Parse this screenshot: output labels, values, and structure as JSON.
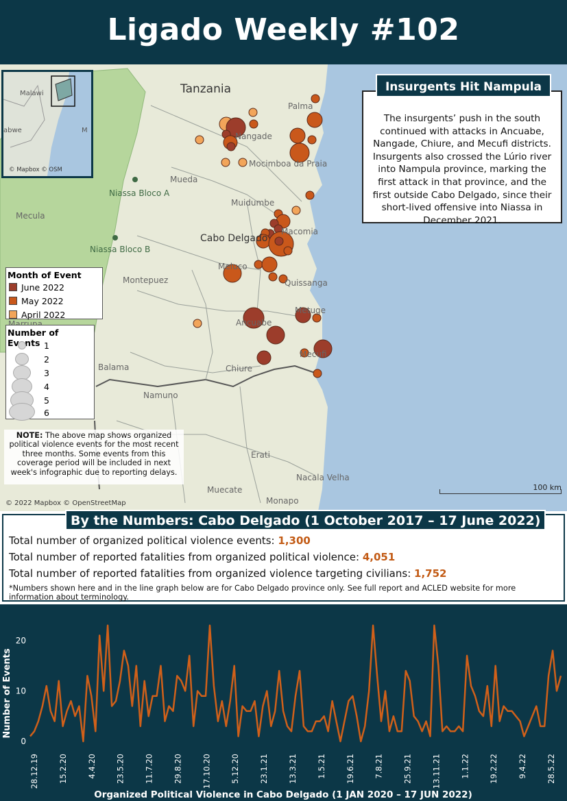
{
  "header": {
    "title": "Ligado Weekly #102"
  },
  "map": {
    "places": [
      {
        "name": "Tanzania",
        "cls": "big"
      },
      {
        "name": "Palma",
        "cls": ""
      },
      {
        "name": "Nangade",
        "cls": ""
      },
      {
        "name": "Mocimboa da Praia",
        "cls": ""
      },
      {
        "name": "Mueda",
        "cls": ""
      },
      {
        "name": "Niassa Bloco A",
        "cls": "green"
      },
      {
        "name": "Mecula",
        "cls": ""
      },
      {
        "name": "Muidumbe",
        "cls": ""
      },
      {
        "name": "Cabo Delgado",
        "cls": "mid"
      },
      {
        "name": "Macomia",
        "cls": ""
      },
      {
        "name": "Niassa Bloco B",
        "cls": "green"
      },
      {
        "name": "Meluco",
        "cls": ""
      },
      {
        "name": "Montepuez",
        "cls": ""
      },
      {
        "name": "Quissanga",
        "cls": ""
      },
      {
        "name": "Marrupa",
        "cls": ""
      },
      {
        "name": "Ancuabe",
        "cls": ""
      },
      {
        "name": "Metuge",
        "cls": ""
      },
      {
        "name": "Mecufi",
        "cls": ""
      },
      {
        "name": "Balama",
        "cls": ""
      },
      {
        "name": "Chiure",
        "cls": ""
      },
      {
        "name": "Namuno",
        "cls": ""
      },
      {
        "name": "Erati",
        "cls": ""
      },
      {
        "name": "Nacala Velha",
        "cls": ""
      },
      {
        "name": "Muecate",
        "cls": ""
      },
      {
        "name": "Monapo",
        "cls": ""
      }
    ],
    "inset": {
      "labels": [
        "Malawi",
        "abwe",
        "M"
      ],
      "copyright": "© Mapbox © OSM"
    },
    "copyright": "© 2022 Mapbox © OpenStreetMap",
    "scale_label": "100 km",
    "colors": {
      "june": "#9c3d2b",
      "may": "#c9581b",
      "april": "#f2a55a",
      "land": "#e8ead9",
      "park": "#b6d69c",
      "sea": "#a9c6e0"
    }
  },
  "story": {
    "title": "Insurgents Hit Nampula",
    "body": "The insurgents’ push in the south continued with attacks in Ancuabe, Nangade, Chiure, and Mecufi districts. Insurgents also crossed the Lúrio river into Nampula province, marking the first attack in that province, and the first outside Cabo Delgado, since their short-lived offensive into Niassa in December 2021."
  },
  "legend_month": {
    "title": "Month of Event",
    "items": [
      {
        "label": "June 2022",
        "color": "#9c3d2b"
      },
      {
        "label": "May 2022",
        "color": "#c9581b"
      },
      {
        "label": "April 2022",
        "color": "#f2a55a"
      }
    ]
  },
  "legend_size": {
    "title": "Number of Events",
    "items": [
      "1",
      "2",
      "3",
      "4",
      "5",
      "6"
    ]
  },
  "note": {
    "bold": "NOTE:",
    "text": " The above map shows organized political violence events for the most recent three months. Some events from this coverage period will be included in next week's infographic due to reporting delays."
  },
  "numbers": {
    "title": "By the Numbers: Cabo Delgado (1 October 2017 – 17 June 2022)",
    "stats": [
      {
        "label": "Total number of organized political violence events: ",
        "value": "1,300"
      },
      {
        "label": "Total number of reported fatalities from organized political violence: ",
        "value": "4,051"
      },
      {
        "label": "Total number of reported fatalities from organized violence targeting civilians: ",
        "value": "1,752"
      }
    ],
    "footnote": "*Numbers shown here and in the line graph below are for Cabo Delgado province only. See full report and ACLED website for more information about terminology."
  },
  "chart_data": {
    "type": "line",
    "title": "Organized Political Violence in Cabo Delgado (1 JAN 2020 – 17 JUN 2022)",
    "ylabel": "Number of Events",
    "ylim": [
      0,
      25
    ],
    "yticks": [
      0,
      10,
      20
    ],
    "xtick_labels": [
      "28.12.19",
      "15.2.20",
      "4.4.20",
      "23.5.20",
      "11.7.20",
      "29.8.20",
      "17.10.20",
      "5.12.20",
      "23.1.21",
      "13.3.21",
      "1.5.21",
      "19.6.21",
      "7.8.21",
      "25.9.21",
      "13.11.21",
      "1.1.22",
      "19.2.22",
      "9.4.22",
      "28.5.22"
    ],
    "series": [
      {
        "color": "#d0601a",
        "values": [
          1,
          2,
          4,
          7,
          11,
          6,
          4,
          12,
          3,
          6,
          8,
          5,
          7,
          0,
          13,
          9,
          2,
          21,
          10,
          23,
          7,
          8,
          12,
          18,
          15,
          7,
          15,
          3,
          12,
          5,
          9,
          9,
          15,
          4,
          7,
          6,
          13,
          12,
          10,
          17,
          3,
          10,
          9,
          9,
          23,
          11,
          4,
          8,
          3,
          8,
          15,
          1,
          7,
          6,
          6,
          8,
          1,
          7,
          10,
          3,
          6,
          14,
          6,
          3,
          2,
          9,
          14,
          3,
          2,
          2,
          4,
          4,
          5,
          2,
          8,
          4,
          0,
          4,
          8,
          9,
          5,
          0,
          3,
          10,
          23,
          13,
          4,
          10,
          2,
          5,
          2,
          2,
          14,
          12,
          5,
          4,
          2,
          4,
          1,
          23,
          15,
          2,
          3,
          2,
          2,
          3,
          2,
          17,
          11,
          9,
          6,
          5,
          11,
          3,
          15,
          4,
          7,
          6,
          6,
          5,
          4,
          1,
          3,
          5,
          7,
          3,
          3,
          13,
          18,
          10,
          13
        ]
      }
    ]
  }
}
